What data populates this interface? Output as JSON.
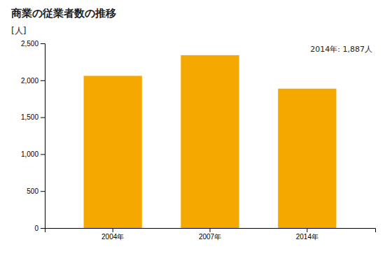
{
  "chart_data": {
    "type": "bar",
    "title": "商業の従業者数の推移",
    "ylabel": "[人]",
    "categories": [
      "2004年",
      "2007年",
      "2014年"
    ],
    "values": [
      2060,
      2340,
      1887
    ],
    "color": "#F5A800",
    "ylim": [
      0,
      2500
    ],
    "yticks": [
      0,
      500,
      {
        "value": 1000,
        "label": "1,000"
      },
      {
        "value": 1500,
        "label": "1,500"
      },
      {
        "value": 2000,
        "label": "2,000"
      },
      {
        "value": 2500,
        "label": "2,500"
      }
    ],
    "annotation": "2014年: 1,887人",
    "grid": false
  }
}
